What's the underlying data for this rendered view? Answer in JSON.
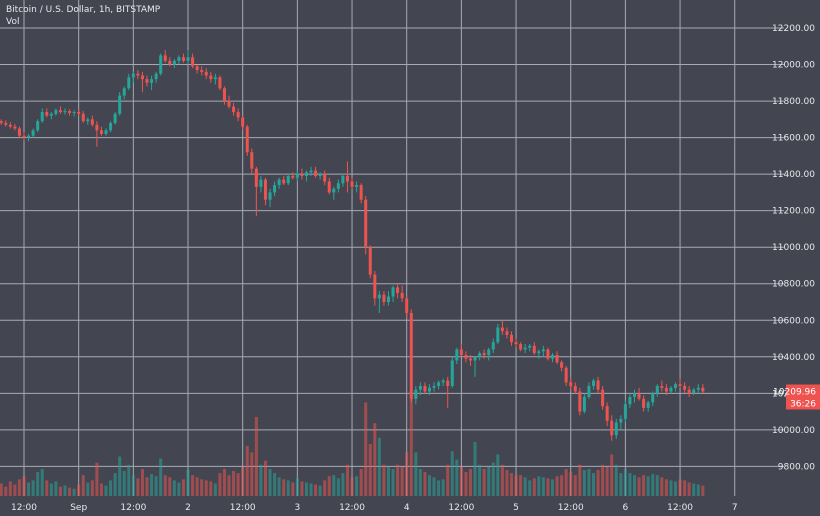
{
  "header": {
    "symbol_line": "Bitcoin / U.S. Dollar, 1h, BITSTAMP",
    "volume_label": "Vol"
  },
  "price_scale": {
    "last_price_label": "10209.96",
    "countdown_label": "36:26"
  },
  "colors": {
    "background": "#434651",
    "grid": "#a7aab5",
    "up": "#26a69a",
    "down": "#ef5350",
    "text": "#e8e8ec"
  },
  "chart_data": {
    "type": "candlestick",
    "ylim": [
      9650,
      12300
    ],
    "y_ticks": [
      12200,
      12000,
      11800,
      11600,
      11400,
      11200,
      11000,
      10800,
      10600,
      10400,
      10200,
      10000,
      9800
    ],
    "y_tick_labels": [
      "12200.00",
      "12000.00",
      "11800.00",
      "11600.00",
      "11400.00",
      "11200.00",
      "11000.00",
      "10800.00",
      "10600.00",
      "10400.00",
      "10200.00",
      "10000.00",
      "9800.00"
    ],
    "x_ticks": [
      {
        "label": "12:00",
        "hour": 12
      },
      {
        "label": "Sep",
        "hour": 24
      },
      {
        "label": "12:00",
        "hour": 36
      },
      {
        "label": "2",
        "hour": 48
      },
      {
        "label": "12:00",
        "hour": 60
      },
      {
        "label": "3",
        "hour": 72
      },
      {
        "label": "12:00",
        "hour": 84
      },
      {
        "label": "4",
        "hour": 96
      },
      {
        "label": "12:00",
        "hour": 108
      },
      {
        "label": "5",
        "hour": 120
      },
      {
        "label": "12:00",
        "hour": 132
      },
      {
        "label": "6",
        "hour": 144
      },
      {
        "label": "12:00",
        "hour": 156
      },
      {
        "label": "7",
        "hour": 168
      }
    ],
    "x_range_hours": [
      7,
      172
    ],
    "interval": "1h",
    "last_price": 10209.96,
    "candles": [
      [
        7,
        11690,
        11700,
        11670,
        11680,
        120
      ],
      [
        8,
        11680,
        11695,
        11660,
        11670,
        90
      ],
      [
        9,
        11670,
        11685,
        11650,
        11660,
        140
      ],
      [
        10,
        11660,
        11675,
        11640,
        11650,
        110
      ],
      [
        11,
        11650,
        11660,
        11600,
        11610,
        160
      ],
      [
        12,
        11610,
        11630,
        11585,
        11600,
        190
      ],
      [
        13,
        11600,
        11620,
        11580,
        11610,
        130
      ],
      [
        14,
        11610,
        11650,
        11600,
        11640,
        150
      ],
      [
        15,
        11640,
        11700,
        11630,
        11690,
        230
      ],
      [
        16,
        11690,
        11760,
        11680,
        11740,
        260
      ],
      [
        17,
        11740,
        11760,
        11710,
        11720,
        150
      ],
      [
        18,
        11720,
        11740,
        11700,
        11730,
        120
      ],
      [
        19,
        11730,
        11760,
        11720,
        11750,
        140
      ],
      [
        20,
        11750,
        11770,
        11730,
        11740,
        90
      ],
      [
        21,
        11740,
        11760,
        11725,
        11745,
        100
      ],
      [
        22,
        11745,
        11755,
        11720,
        11735,
        80
      ],
      [
        23,
        11735,
        11750,
        11715,
        11740,
        70
      ],
      [
        24,
        11740,
        11755,
        11720,
        11730,
        110
      ],
      [
        25,
        11730,
        11745,
        11680,
        11690,
        200
      ],
      [
        26,
        11690,
        11710,
        11670,
        11700,
        130
      ],
      [
        27,
        11700,
        11720,
        11660,
        11670,
        150
      ],
      [
        28,
        11670,
        11690,
        11550,
        11640,
        320
      ],
      [
        29,
        11640,
        11660,
        11610,
        11620,
        120
      ],
      [
        30,
        11620,
        11650,
        11610,
        11640,
        100
      ],
      [
        31,
        11640,
        11690,
        11630,
        11680,
        150
      ],
      [
        32,
        11680,
        11740,
        11670,
        11730,
        220
      ],
      [
        33,
        11730,
        11850,
        11720,
        11830,
        380
      ],
      [
        34,
        11830,
        11880,
        11810,
        11870,
        240
      ],
      [
        35,
        11870,
        11950,
        11860,
        11930,
        300
      ],
      [
        36,
        11930,
        11960,
        11900,
        11950,
        200
      ],
      [
        37,
        11950,
        11970,
        11920,
        11940,
        170
      ],
      [
        38,
        11940,
        11960,
        11850,
        11920,
        260
      ],
      [
        39,
        11920,
        11940,
        11880,
        11900,
        180
      ],
      [
        40,
        11900,
        11940,
        11860,
        11920,
        210
      ],
      [
        41,
        11920,
        11960,
        11900,
        11950,
        190
      ],
      [
        42,
        11950,
        12060,
        11940,
        12050,
        360
      ],
      [
        43,
        12050,
        12080,
        12010,
        12020,
        200
      ],
      [
        44,
        12020,
        12040,
        11990,
        12000,
        180
      ],
      [
        45,
        12000,
        12030,
        11980,
        12020,
        150
      ],
      [
        46,
        12020,
        12050,
        12000,
        12040,
        130
      ],
      [
        47,
        12040,
        12060,
        12010,
        12020,
        160
      ],
      [
        48,
        12020,
        12080,
        12000,
        12040,
        250
      ],
      [
        49,
        12040,
        12060,
        11980,
        11990,
        200
      ],
      [
        50,
        11990,
        12000,
        11950,
        11970,
        180
      ],
      [
        51,
        11970,
        11990,
        11940,
        11960,
        160
      ],
      [
        52,
        11960,
        11980,
        11920,
        11940,
        150
      ],
      [
        53,
        11940,
        11960,
        11900,
        11920,
        140
      ],
      [
        54,
        11920,
        11950,
        11890,
        11930,
        120
      ],
      [
        55,
        11930,
        11940,
        11860,
        11870,
        220
      ],
      [
        56,
        11870,
        11880,
        11780,
        11800,
        260
      ],
      [
        57,
        11800,
        11830,
        11760,
        11770,
        200
      ],
      [
        58,
        11770,
        11790,
        11720,
        11740,
        240
      ],
      [
        59,
        11740,
        11760,
        11690,
        11710,
        220
      ],
      [
        60,
        11710,
        11720,
        11640,
        11660,
        280
      ],
      [
        61,
        11660,
        11670,
        11500,
        11520,
        480
      ],
      [
        62,
        11520,
        11540,
        11400,
        11430,
        420
      ],
      [
        63,
        11430,
        11440,
        11170,
        11330,
        760
      ],
      [
        64,
        11330,
        11390,
        11300,
        11370,
        300
      ],
      [
        65,
        11370,
        11380,
        11230,
        11260,
        340
      ],
      [
        66,
        11260,
        11320,
        11220,
        11300,
        260
      ],
      [
        67,
        11300,
        11360,
        11280,
        11340,
        220
      ],
      [
        68,
        11340,
        11380,
        11320,
        11370,
        180
      ],
      [
        69,
        11370,
        11390,
        11340,
        11350,
        160
      ],
      [
        70,
        11350,
        11400,
        11340,
        11390,
        150
      ],
      [
        71,
        11390,
        11410,
        11370,
        11380,
        130
      ],
      [
        72,
        11380,
        11420,
        11360,
        11400,
        170
      ],
      [
        73,
        11400,
        11430,
        11370,
        11390,
        140
      ],
      [
        74,
        11390,
        11420,
        11360,
        11410,
        130
      ],
      [
        75,
        11410,
        11440,
        11390,
        11420,
        120
      ],
      [
        76,
        11420,
        11440,
        11380,
        11390,
        110
      ],
      [
        77,
        11390,
        11410,
        11370,
        11400,
        100
      ],
      [
        78,
        11400,
        11420,
        11340,
        11360,
        150
      ],
      [
        79,
        11360,
        11380,
        11290,
        11300,
        190
      ],
      [
        80,
        11300,
        11330,
        11260,
        11320,
        200
      ],
      [
        81,
        11320,
        11370,
        11300,
        11350,
        170
      ],
      [
        82,
        11350,
        11400,
        11330,
        11390,
        220
      ],
      [
        83,
        11390,
        11470,
        11300,
        11360,
        300
      ],
      [
        84,
        11360,
        11380,
        11320,
        11330,
        180
      ],
      [
        85,
        11330,
        11360,
        11300,
        11340,
        190
      ],
      [
        86,
        11340,
        11350,
        11240,
        11260,
        260
      ],
      [
        87,
        11260,
        11280,
        10960,
        11000,
        900
      ],
      [
        88,
        11000,
        11010,
        10830,
        10850,
        500
      ],
      [
        89,
        10850,
        10870,
        10680,
        10720,
        700
      ],
      [
        90,
        10720,
        10760,
        10640,
        10740,
        560
      ],
      [
        91,
        10740,
        10760,
        10680,
        10700,
        300
      ],
      [
        92,
        10700,
        10760,
        10680,
        10730,
        280
      ],
      [
        93,
        10730,
        10790,
        10700,
        10780,
        260
      ],
      [
        94,
        10780,
        10800,
        10720,
        10750,
        300
      ],
      [
        95,
        10750,
        10790,
        10700,
        10720,
        280
      ],
      [
        96,
        10720,
        10730,
        10610,
        10640,
        420
      ],
      [
        97,
        10640,
        10660,
        10150,
        10170,
        1000
      ],
      [
        98,
        10170,
        10240,
        10140,
        10220,
        420
      ],
      [
        99,
        10220,
        10260,
        10190,
        10240,
        260
      ],
      [
        100,
        10240,
        10260,
        10200,
        10210,
        230
      ],
      [
        101,
        10210,
        10250,
        10190,
        10230,
        200
      ],
      [
        102,
        10230,
        10260,
        10210,
        10240,
        180
      ],
      [
        103,
        10240,
        10270,
        10220,
        10260,
        150
      ],
      [
        104,
        10260,
        10280,
        10240,
        10270,
        160
      ],
      [
        105,
        10270,
        10290,
        10120,
        10240,
        300
      ],
      [
        106,
        10240,
        10400,
        10230,
        10380,
        430
      ],
      [
        107,
        10380,
        10450,
        10360,
        10440,
        350
      ],
      [
        108,
        10440,
        10470,
        10400,
        10410,
        280
      ],
      [
        109,
        10410,
        10430,
        10370,
        10390,
        230
      ],
      [
        110,
        10390,
        10410,
        10350,
        10380,
        260
      ],
      [
        111,
        10380,
        10400,
        10290,
        10400,
        520
      ],
      [
        112,
        10400,
        10430,
        10380,
        10420,
        300
      ],
      [
        113,
        10420,
        10440,
        10390,
        10410,
        260
      ],
      [
        114,
        10410,
        10450,
        10380,
        10440,
        280
      ],
      [
        115,
        10440,
        10500,
        10420,
        10480,
        320
      ],
      [
        116,
        10480,
        10580,
        10470,
        10560,
        400
      ],
      [
        117,
        10560,
        10600,
        10520,
        10540,
        300
      ],
      [
        118,
        10540,
        10560,
        10500,
        10520,
        250
      ],
      [
        119,
        10520,
        10540,
        10460,
        10480,
        220
      ],
      [
        120,
        10480,
        10500,
        10450,
        10470,
        200
      ],
      [
        121,
        10470,
        10480,
        10430,
        10440,
        200
      ],
      [
        122,
        10440,
        10470,
        10420,
        10450,
        180
      ],
      [
        123,
        10450,
        10470,
        10430,
        10460,
        150
      ],
      [
        124,
        10460,
        10480,
        10410,
        10420,
        170
      ],
      [
        125,
        10420,
        10440,
        10390,
        10430,
        190
      ],
      [
        126,
        10430,
        10460,
        10400,
        10440,
        180
      ],
      [
        127,
        10440,
        10450,
        10380,
        10390,
        170
      ],
      [
        128,
        10390,
        10420,
        10370,
        10410,
        160
      ],
      [
        129,
        10410,
        10430,
        10360,
        10370,
        190
      ],
      [
        130,
        10370,
        10380,
        10320,
        10340,
        200
      ],
      [
        131,
        10340,
        10350,
        10240,
        10260,
        260
      ],
      [
        132,
        10260,
        10290,
        10220,
        10240,
        230
      ],
      [
        133,
        10240,
        10260,
        10200,
        10210,
        200
      ],
      [
        134,
        10210,
        10230,
        10080,
        10100,
        300
      ],
      [
        135,
        10100,
        10200,
        10090,
        10180,
        250
      ],
      [
        136,
        10180,
        10260,
        10170,
        10240,
        260
      ],
      [
        137,
        10240,
        10280,
        10220,
        10270,
        220
      ],
      [
        138,
        10270,
        10290,
        10200,
        10220,
        250
      ],
      [
        139,
        10220,
        10240,
        10110,
        10130,
        300
      ],
      [
        140,
        10130,
        10150,
        10020,
        10050,
        280
      ],
      [
        141,
        10050,
        10080,
        9940,
        9970,
        400
      ],
      [
        142,
        9970,
        10060,
        9950,
        10040,
        300
      ],
      [
        143,
        10040,
        10080,
        10000,
        10060,
        220
      ],
      [
        144,
        10060,
        10160,
        10040,
        10140,
        260
      ],
      [
        145,
        10140,
        10200,
        10120,
        10180,
        220
      ],
      [
        146,
        10180,
        10220,
        10150,
        10200,
        200
      ],
      [
        147,
        10200,
        10230,
        10160,
        10170,
        180
      ],
      [
        148,
        10170,
        10190,
        10100,
        10120,
        200
      ],
      [
        149,
        10120,
        10160,
        10100,
        10150,
        190
      ],
      [
        150,
        10150,
        10210,
        10130,
        10200,
        210
      ],
      [
        151,
        10200,
        10250,
        10180,
        10240,
        200
      ],
      [
        152,
        10240,
        10270,
        10210,
        10230,
        180
      ],
      [
        153,
        10230,
        10250,
        10190,
        10210,
        160
      ],
      [
        154,
        10210,
        10240,
        10200,
        10230,
        150
      ],
      [
        155,
        10230,
        10260,
        10210,
        10250,
        140
      ],
      [
        156,
        10250,
        10280,
        10230,
        10240,
        160
      ],
      [
        157,
        10240,
        10260,
        10200,
        10220,
        150
      ],
      [
        158,
        10220,
        10240,
        10180,
        10200,
        130
      ],
      [
        159,
        10200,
        10230,
        10190,
        10220,
        120
      ],
      [
        160,
        10220,
        10250,
        10200,
        10230,
        110
      ],
      [
        161,
        10230,
        10250,
        10200,
        10210,
        100
      ]
    ]
  }
}
